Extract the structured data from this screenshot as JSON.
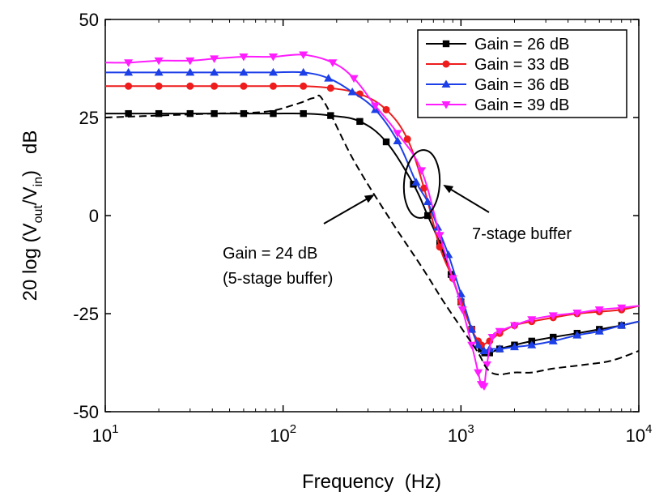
{
  "chart_data": {
    "type": "line",
    "xscale": "log",
    "xlim": [
      10,
      10000
    ],
    "ylim": [
      -50,
      50
    ],
    "xlabel": "Frequency  (Hz)",
    "ylabel_prefix": "20 log (V",
    "ylabel_sub1": "out",
    "ylabel_mid": "/V",
    "ylabel_sub2": "in",
    "ylabel_suffix": ")   dB",
    "xticks": [
      {
        "value": 10,
        "base": "10",
        "exp": "1"
      },
      {
        "value": 100,
        "base": "10",
        "exp": "2"
      },
      {
        "value": 1000,
        "base": "10",
        "exp": "3"
      },
      {
        "value": 10000,
        "base": "10",
        "exp": "4"
      }
    ],
    "yticks": [
      -50,
      -25,
      0,
      25,
      50
    ],
    "legend_position": "top-right",
    "series": [
      {
        "name": "Gain = 26 dB",
        "color": "#000000",
        "marker": "square",
        "x": [
          10,
          13.5,
          20,
          30,
          41,
          60,
          88,
          130,
          185,
          270,
          380,
          540,
          650,
          760,
          880,
          1000,
          1150,
          1300,
          1360,
          1450,
          1650,
          2000,
          2500,
          3300,
          4500,
          6000,
          8000,
          10000
        ],
        "y": [
          26,
          26,
          26,
          26,
          26,
          26,
          26,
          26,
          25.5,
          24,
          18.8,
          8,
          0,
          -7,
          -15,
          -22,
          -29,
          -34,
          -35,
          -35,
          -34,
          -33,
          -32,
          -31,
          -30,
          -29,
          -28,
          -27
        ]
      },
      {
        "name": "Gain = 33 dB",
        "color": "#ee1c1c",
        "marker": "circle",
        "x": [
          10,
          13.5,
          20,
          30,
          41,
          60,
          88,
          130,
          185,
          270,
          380,
          500,
          620,
          760,
          900,
          1000,
          1150,
          1250,
          1300,
          1450,
          1650,
          2000,
          2500,
          3300,
          4500,
          6000,
          8000,
          10000
        ],
        "y": [
          33,
          33,
          33,
          33,
          33,
          33,
          33,
          33,
          32.5,
          31,
          27,
          19.5,
          7,
          -8,
          -16,
          -22,
          -29,
          -32,
          -33,
          -32,
          -30,
          -28,
          -27,
          -26,
          -25,
          -24.5,
          -24,
          -23
        ]
      },
      {
        "name": "Gain = 36 dB",
        "color": "#1c3fe8",
        "marker": "triangle-up",
        "x": [
          10,
          13.5,
          20,
          30,
          41,
          60,
          88,
          130,
          180,
          245,
          330,
          440,
          560,
          650,
          740,
          850,
          1000,
          1150,
          1250,
          1350,
          1450,
          1650,
          2000,
          2500,
          3300,
          4500,
          6000,
          8000,
          10000
        ],
        "y": [
          36.5,
          36.5,
          36.5,
          36.5,
          36.5,
          36.5,
          36.5,
          36.5,
          35,
          31.5,
          27,
          19,
          8.5,
          3.5,
          -3,
          -10,
          -20,
          -29,
          -33,
          -34.5,
          -34,
          -34,
          -33.5,
          -33,
          -32,
          -30.5,
          -29.5,
          -28,
          -27
        ]
      },
      {
        "name": "Gain = 39 dB",
        "color": "#ff1cff",
        "marker": "triangle-down",
        "x": [
          10,
          13.5,
          20,
          30,
          41,
          60,
          88,
          130,
          190,
          250,
          330,
          440,
          600,
          760,
          900,
          1020,
          1150,
          1250,
          1300,
          1350,
          1400,
          1500,
          1650,
          2000,
          2500,
          3300,
          4500,
          6000,
          8000,
          10000
        ],
        "y": [
          39,
          39,
          39.5,
          39.5,
          40,
          40.5,
          40.5,
          41,
          39,
          35,
          28,
          21,
          11.5,
          -5,
          -16,
          -24,
          -33,
          -40,
          -43,
          -43.5,
          -38,
          -31,
          -29.5,
          -28,
          -26.5,
          -25.5,
          -24.8,
          -24,
          -23.5,
          -23
        ]
      },
      {
        "name": "Gain = 24 dB (5-stage buffer)",
        "color": "#000000",
        "marker": "none",
        "dash": "dashed",
        "x": [
          10,
          20,
          40,
          80,
          120,
          150,
          170,
          250,
          400,
          600,
          800,
          1000,
          1250,
          1400,
          1600,
          2000,
          2500,
          3300,
          5000,
          7000,
          10000
        ],
        "y": [
          25,
          25.5,
          26,
          26.5,
          28.5,
          30,
          29,
          14,
          -1,
          -13,
          -22,
          -28.5,
          -35,
          -39,
          -40.5,
          -40,
          -40,
          -39,
          -38,
          -37,
          -34.5
        ]
      }
    ],
    "annotations": {
      "line1": "Gain = 24 dB",
      "line2": "(5-stage buffer)",
      "seven": "7-stage buffer"
    }
  }
}
